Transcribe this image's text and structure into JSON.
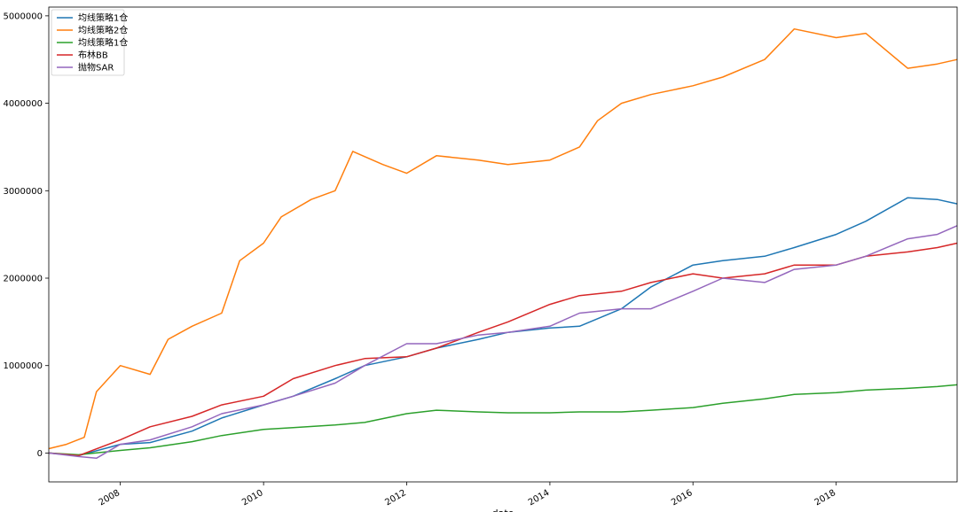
{
  "chart_data": {
    "type": "line",
    "title": "",
    "xlabel": "date",
    "ylabel": "",
    "xlim": [
      "2007-01-01",
      "2019-09-10"
    ],
    "ylim": [
      -330000,
      5100000
    ],
    "x_ticks": [
      "2008",
      "2010",
      "2012",
      "2014",
      "2016",
      "2018"
    ],
    "y_ticks": [
      "0",
      "1000000",
      "2000000",
      "3000000",
      "4000000",
      "5000000"
    ],
    "legend_position": "top-left",
    "grid": false,
    "series": [
      {
        "name": "均线策略1仓",
        "color": "#1f77b4",
        "x": [
          "2007-01-01",
          "2007-06-01",
          "2008-01-01",
          "2008-06-01",
          "2009-01-01",
          "2009-06-01",
          "2010-01-01",
          "2010-06-01",
          "2011-01-01",
          "2011-06-01",
          "2012-01-01",
          "2012-06-01",
          "2013-01-01",
          "2013-06-01",
          "2014-01-01",
          "2014-06-01",
          "2015-01-01",
          "2015-06-01",
          "2016-01-01",
          "2016-06-01",
          "2017-01-01",
          "2017-06-01",
          "2018-01-01",
          "2018-06-01",
          "2019-01-01",
          "2019-06-01",
          "2019-09-10"
        ],
        "values": [
          0,
          -30000,
          100000,
          120000,
          250000,
          400000,
          550000,
          650000,
          850000,
          1000000,
          1100000,
          1200000,
          1300000,
          1380000,
          1430000,
          1450000,
          1650000,
          1900000,
          2150000,
          2200000,
          2250000,
          2350000,
          2500000,
          2650000,
          2920000,
          2900000,
          2850000
        ]
      },
      {
        "name": "均线策略2仓",
        "color": "#ff7f0e",
        "x": [
          "2007-01-01",
          "2007-04-01",
          "2007-07-01",
          "2007-09-01",
          "2008-01-01",
          "2008-06-01",
          "2008-09-01",
          "2009-01-01",
          "2009-06-01",
          "2009-09-01",
          "2010-01-01",
          "2010-04-01",
          "2010-09-01",
          "2011-01-01",
          "2011-04-01",
          "2011-09-01",
          "2012-01-01",
          "2012-06-01",
          "2013-01-01",
          "2013-06-01",
          "2014-01-01",
          "2014-06-01",
          "2014-09-01",
          "2015-01-01",
          "2015-06-01",
          "2016-01-01",
          "2016-06-01",
          "2017-01-01",
          "2017-06-01",
          "2018-01-01",
          "2018-06-01",
          "2019-01-01",
          "2019-06-01",
          "2019-09-10"
        ],
        "values": [
          50000,
          100000,
          180000,
          700000,
          1000000,
          900000,
          1300000,
          1450000,
          1600000,
          2200000,
          2400000,
          2700000,
          2900000,
          3000000,
          3450000,
          3300000,
          3200000,
          3400000,
          3350000,
          3300000,
          3350000,
          3500000,
          3800000,
          4000000,
          4100000,
          4200000,
          4300000,
          4500000,
          4850000,
          4750000,
          4800000,
          4400000,
          4450000,
          4500000
        ]
      },
      {
        "name": "均线策略1仓",
        "color": "#2ca02c",
        "x": [
          "2007-01-01",
          "2007-06-01",
          "2008-01-01",
          "2008-06-01",
          "2009-01-01",
          "2009-06-01",
          "2010-01-01",
          "2010-06-01",
          "2011-01-01",
          "2011-06-01",
          "2012-01-01",
          "2012-06-01",
          "2013-01-01",
          "2013-06-01",
          "2014-01-01",
          "2014-06-01",
          "2015-01-01",
          "2015-06-01",
          "2016-01-01",
          "2016-06-01",
          "2017-01-01",
          "2017-06-01",
          "2018-01-01",
          "2018-06-01",
          "2019-01-01",
          "2019-06-01",
          "2019-09-10"
        ],
        "values": [
          0,
          -20000,
          30000,
          60000,
          130000,
          200000,
          270000,
          290000,
          320000,
          350000,
          450000,
          490000,
          470000,
          460000,
          460000,
          470000,
          470000,
          490000,
          520000,
          570000,
          620000,
          670000,
          690000,
          720000,
          740000,
          760000,
          780000
        ]
      },
      {
        "name": "布林BB",
        "color": "#d62728",
        "x": [
          "2007-01-01",
          "2007-06-01",
          "2008-01-01",
          "2008-06-01",
          "2009-01-01",
          "2009-06-01",
          "2010-01-01",
          "2010-06-01",
          "2011-01-01",
          "2011-06-01",
          "2012-01-01",
          "2012-06-01",
          "2013-01-01",
          "2013-06-01",
          "2014-01-01",
          "2014-06-01",
          "2015-01-01",
          "2015-06-01",
          "2016-01-01",
          "2016-06-01",
          "2017-01-01",
          "2017-06-01",
          "2018-01-01",
          "2018-06-01",
          "2019-01-01",
          "2019-06-01",
          "2019-09-10"
        ],
        "values": [
          0,
          -30000,
          150000,
          300000,
          420000,
          550000,
          650000,
          850000,
          1000000,
          1080000,
          1100000,
          1200000,
          1380000,
          1500000,
          1700000,
          1800000,
          1850000,
          1950000,
          2050000,
          2000000,
          2050000,
          2150000,
          2150000,
          2250000,
          2300000,
          2350000,
          2400000
        ]
      },
      {
        "name": "抛物SAR",
        "color": "#9467bd",
        "x": [
          "2007-01-01",
          "2007-06-01",
          "2007-09-01",
          "2008-01-01",
          "2008-06-01",
          "2009-01-01",
          "2009-06-01",
          "2010-01-01",
          "2010-06-01",
          "2011-01-01",
          "2011-06-01",
          "2012-01-01",
          "2012-06-01",
          "2013-01-01",
          "2013-06-01",
          "2014-01-01",
          "2014-06-01",
          "2015-01-01",
          "2015-06-01",
          "2016-01-01",
          "2016-06-01",
          "2017-01-01",
          "2017-06-01",
          "2018-01-01",
          "2018-06-01",
          "2019-01-01",
          "2019-06-01",
          "2019-09-10"
        ],
        "values": [
          0,
          -40000,
          -60000,
          100000,
          150000,
          300000,
          450000,
          550000,
          650000,
          800000,
          1000000,
          1250000,
          1250000,
          1350000,
          1380000,
          1450000,
          1600000,
          1650000,
          1650000,
          1850000,
          2000000,
          1950000,
          2100000,
          2150000,
          2250000,
          2450000,
          2500000,
          2600000
        ]
      }
    ]
  }
}
